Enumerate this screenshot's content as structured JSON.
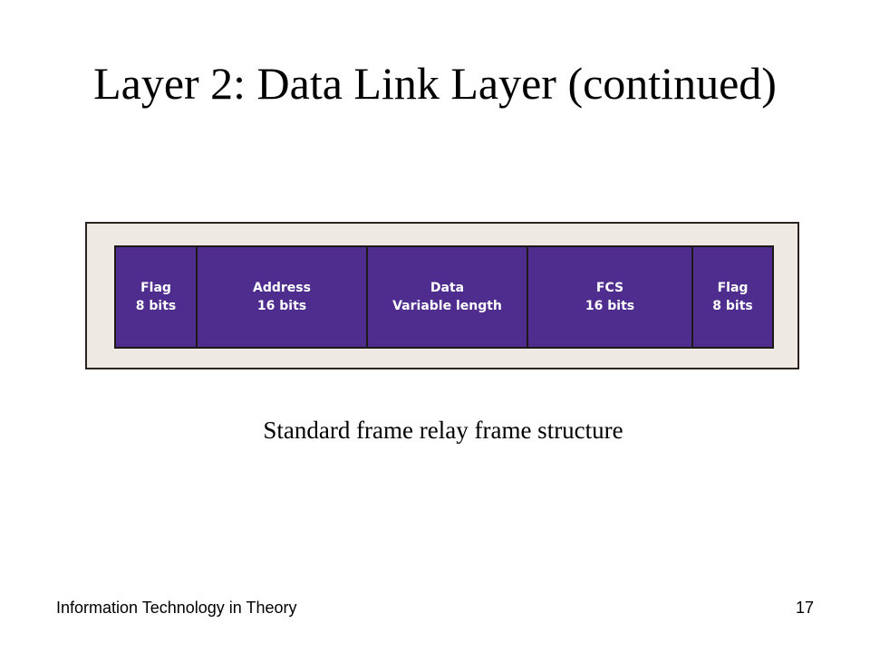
{
  "slide": {
    "title": "Layer 2: Data Link Layer (continued)",
    "caption": "Standard frame relay frame structure"
  },
  "frame": {
    "fields": [
      {
        "name": "Flag",
        "size": "8 bits"
      },
      {
        "name": "Address",
        "size": "16 bits"
      },
      {
        "name": "Data",
        "size": "Variable length"
      },
      {
        "name": "FCS",
        "size": "16 bits"
      },
      {
        "name": "Flag",
        "size": "8 bits"
      }
    ],
    "colors": {
      "field_fill": "#4e2d8e",
      "outer_fill": "#efe9e4",
      "text": "#ffffff"
    }
  },
  "footer": {
    "course": "Information Technology in Theory",
    "page_number": "17"
  }
}
